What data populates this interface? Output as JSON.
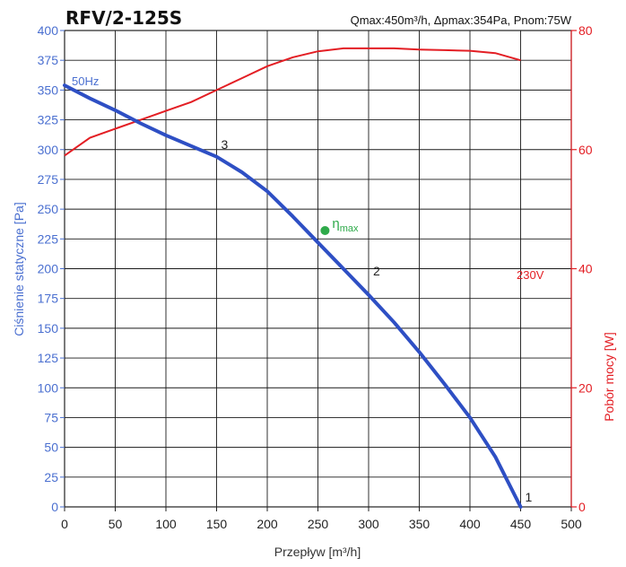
{
  "chart_data": {
    "type": "line",
    "title": "RFV/2-125S",
    "subtitle": "Qmax:450m³/h, Δpmax:354Pa, Pnom:75W",
    "xlabel": "Przepływ [m³/h]",
    "ylabel_left": "Ciśnienie statyczne [Pa]",
    "ylabel_right": "Pobór mocy [W]",
    "xlim": [
      0,
      500
    ],
    "ylim_left": [
      0,
      400
    ],
    "ylim_right": [
      0,
      80
    ],
    "x_ticks": [
      0,
      50,
      100,
      150,
      200,
      250,
      300,
      350,
      400,
      450,
      500
    ],
    "y_left_ticks": [
      0,
      25,
      50,
      75,
      100,
      125,
      150,
      175,
      200,
      225,
      250,
      275,
      300,
      325,
      350,
      375,
      400
    ],
    "y_right_ticks": [
      0,
      20,
      40,
      60,
      80
    ],
    "grid": true,
    "colors": {
      "pressure": "#2e4fc4",
      "power": "#e31e24",
      "eta": "#2eaa4a",
      "left_axis": "#4a6fd0",
      "right_axis": "#e31e24"
    },
    "series": [
      {
        "name": "50Hz",
        "axis": "left",
        "x": [
          0,
          25,
          50,
          75,
          100,
          125,
          150,
          175,
          200,
          225,
          250,
          275,
          300,
          325,
          350,
          375,
          400,
          425,
          450
        ],
        "y": [
          354,
          343,
          333,
          322,
          312,
          303,
          294,
          281,
          265,
          244,
          222,
          200,
          178,
          155,
          130,
          103,
          75,
          42,
          0
        ]
      },
      {
        "name": "230V",
        "axis": "right",
        "x": [
          0,
          25,
          50,
          75,
          100,
          125,
          150,
          175,
          200,
          225,
          250,
          275,
          300,
          325,
          350,
          375,
          400,
          425,
          450
        ],
        "y": [
          59,
          62,
          63.5,
          65,
          66.5,
          68,
          70,
          72,
          74,
          75.5,
          76.5,
          77,
          77,
          77,
          76.8,
          76.7,
          76.6,
          76.2,
          75
        ]
      }
    ],
    "annotations": [
      {
        "label": "1",
        "x": 450,
        "y": 0
      },
      {
        "label": "2",
        "x": 300,
        "y": 190
      },
      {
        "label": "3",
        "x": 150,
        "y": 296
      }
    ],
    "eta_max": {
      "label_main": "η",
      "label_sub": "max",
      "x": 257,
      "y": 232
    }
  }
}
